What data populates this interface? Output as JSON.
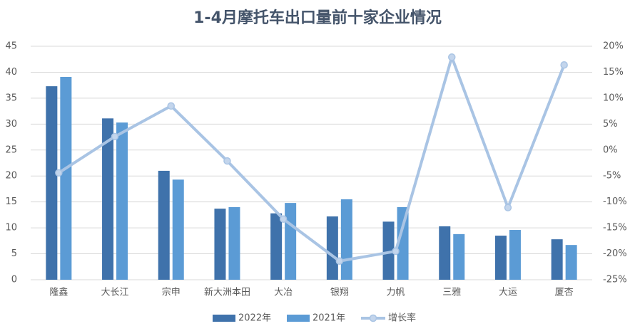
{
  "chart_data": {
    "type": "bar-line",
    "title": "1-4月摩托车出口量前十家企业情况",
    "categories": [
      "隆鑫",
      "大长江",
      "宗申",
      "新大洲本田",
      "大冶",
      "银翔",
      "力帆",
      "三雅",
      "大运",
      "厦杏"
    ],
    "series": [
      {
        "name": "2022年",
        "color": "#3f72ab",
        "type": "bar",
        "values": [
          37.3,
          31.1,
          21.0,
          13.7,
          12.8,
          12.2,
          11.2,
          10.3,
          8.5,
          7.8
        ]
      },
      {
        "name": "2021年",
        "color": "#5b9bd5",
        "type": "bar",
        "values": [
          39.1,
          30.3,
          19.3,
          14.0,
          14.8,
          15.5,
          14.0,
          8.8,
          9.6,
          6.7
        ]
      },
      {
        "name": "增长率",
        "color": "#a9c4e4",
        "type": "line",
        "axis": "y2",
        "values": [
          -4.4,
          2.6,
          8.5,
          -2.1,
          -13.3,
          -21.4,
          -19.5,
          17.9,
          -11.1,
          16.4
        ]
      }
    ],
    "ylim": [
      0,
      45
    ],
    "yticks": [
      0,
      5,
      10,
      15,
      20,
      25,
      30,
      35,
      40,
      45
    ],
    "y2lim": [
      -25,
      20
    ],
    "y2ticks": [
      {
        "value": -25,
        "label": "-25%"
      },
      {
        "value": -20,
        "label": "-20%"
      },
      {
        "value": -15,
        "label": "-15%"
      },
      {
        "value": -10,
        "label": "-10%"
      },
      {
        "value": -5,
        "label": "-5%"
      },
      {
        "value": 0,
        "label": "0%"
      },
      {
        "value": 5,
        "label": "5%"
      },
      {
        "value": 10,
        "label": "10%"
      },
      {
        "value": 15,
        "label": "15%"
      },
      {
        "value": 20,
        "label": "20%"
      }
    ],
    "grid": true
  }
}
